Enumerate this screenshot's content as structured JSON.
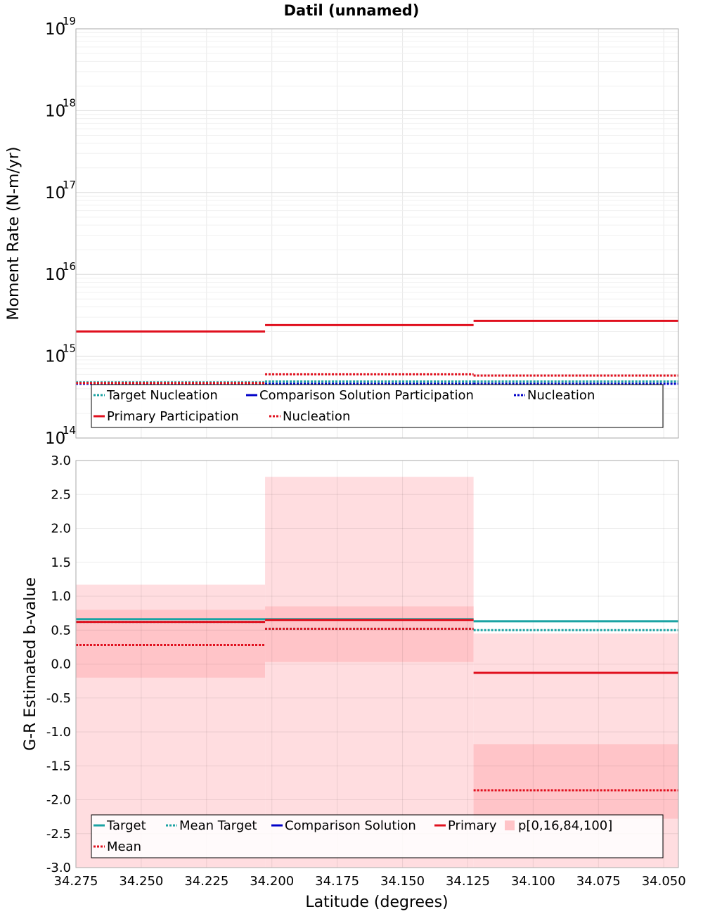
{
  "title": "Datil (unnamed)",
  "xlabel": "Latitude (degrees)",
  "colors": {
    "target": "#1aa3a3",
    "comparison": "#0000c8",
    "primary": "#e0101e",
    "band_outer": "#ffdde0",
    "band_inner": "#ffc4c8"
  },
  "chart_data": [
    {
      "type": "line",
      "ylabel": "Moment Rate (N-m/yr)",
      "yscale": "log",
      "xlim": [
        34.275,
        34.0444
      ],
      "ylim": [
        100000000000000.0,
        1e+19
      ],
      "x_ticks": [
        34.275,
        34.25,
        34.225,
        34.2,
        34.175,
        34.15,
        34.125,
        34.1,
        34.075,
        34.05
      ],
      "y_ticks": [
        {
          "base": "10",
          "exp": "14",
          "value": 100000000000000.0
        },
        {
          "base": "10",
          "exp": "15",
          "value": 1000000000000000.0
        },
        {
          "base": "10",
          "exp": "16",
          "value": 1e+16
        },
        {
          "base": "10",
          "exp": "17",
          "value": 1e+17
        },
        {
          "base": "10",
          "exp": "18",
          "value": 1e+18
        },
        {
          "base": "10",
          "exp": "19",
          "value": 1e+19
        }
      ],
      "segments": [
        [
          34.275,
          34.2026
        ],
        [
          34.2026,
          34.1228
        ],
        [
          34.1228,
          34.0444
        ]
      ],
      "series": [
        {
          "name": "Target Nucleation",
          "style": "dotted",
          "color": "#1aa3a3",
          "values": [
            480000000000000.0,
            490000000000000.0,
            490000000000000.0
          ]
        },
        {
          "name": "Comparison Solution Participation",
          "style": "solid",
          "color": "#0000c8",
          "values": null
        },
        {
          "name": "Nucleation",
          "style": "dotted",
          "color": "#0000c8",
          "values": [
            460000000000000.0,
            460000000000000.0,
            460000000000000.0
          ]
        },
        {
          "name": "Primary Participation",
          "style": "solid",
          "color": "#e0101e",
          "values": [
            2000000000000000.0,
            2400000000000000.0,
            2700000000000000.0
          ]
        },
        {
          "name": "Nucleation",
          "style": "dotted",
          "color": "#e0101e",
          "values": [
            470000000000000.0,
            600000000000000.0,
            580000000000000.0
          ]
        }
      ],
      "legend": {
        "placement": "bottom-left",
        "rows": [
          [
            0,
            1,
            2
          ],
          [
            3,
            4
          ]
        ]
      }
    },
    {
      "type": "line",
      "ylabel": "G-R Estimated b-value",
      "xlim": [
        34.275,
        34.0444
      ],
      "ylim": [
        -3.0,
        3.0
      ],
      "x_ticks": [
        34.275,
        34.25,
        34.225,
        34.2,
        34.175,
        34.15,
        34.125,
        34.1,
        34.075,
        34.05
      ],
      "x_tick_labels": [
        "34.275",
        "34.250",
        "34.225",
        "34.200",
        "34.175",
        "34.150",
        "34.125",
        "34.100",
        "34.075",
        "34.050"
      ],
      "y_ticks": [
        3.0,
        2.5,
        2.0,
        1.5,
        1.0,
        0.5,
        0.0,
        -0.5,
        -1.0,
        -1.5,
        -2.0,
        -2.5,
        -3.0
      ],
      "y_tick_labels": [
        "3.0",
        "2.5",
        "2.0",
        "1.5",
        "1.0",
        "0.5",
        "0.0",
        "-0.5",
        "-1.0",
        "-1.5",
        "-2.0",
        "-2.5",
        "-3.0"
      ],
      "segments": [
        [
          34.275,
          34.2026
        ],
        [
          34.2026,
          34.1228
        ],
        [
          34.1228,
          34.0444
        ]
      ],
      "bands": [
        {
          "p0": -3.0,
          "p16": -0.2,
          "p84": 0.8,
          "p100": 1.17
        },
        {
          "p0": -3.0,
          "p16": 0.03,
          "p84": 0.85,
          "p100": 2.76
        },
        {
          "p0": -3.0,
          "p16": -2.28,
          "p84": -1.18,
          "p100": 0.45
        }
      ],
      "series": [
        {
          "name": "Target",
          "style": "solid",
          "color": "#1aa3a3",
          "values": [
            0.66,
            0.66,
            0.63
          ]
        },
        {
          "name": "Mean Target",
          "style": "dotted",
          "color": "#1aa3a3",
          "values": [
            0.62,
            0.52,
            0.5
          ]
        },
        {
          "name": "Comparison Solution",
          "style": "solid",
          "color": "#0000c8",
          "values": null
        },
        {
          "name": "Primary",
          "style": "solid",
          "color": "#e0101e",
          "values": [
            0.62,
            0.65,
            -0.13
          ]
        },
        {
          "name": "p[0,16,84,100]",
          "style": "band",
          "color": "#ffc4c8",
          "values": null
        },
        {
          "name": "Mean",
          "style": "dotted",
          "color": "#e0101e",
          "values": [
            0.28,
            0.52,
            -1.86
          ]
        }
      ],
      "legend": {
        "placement": "bottom-left",
        "rows": [
          [
            0,
            1,
            2,
            3,
            4
          ],
          [
            5
          ]
        ]
      }
    }
  ]
}
